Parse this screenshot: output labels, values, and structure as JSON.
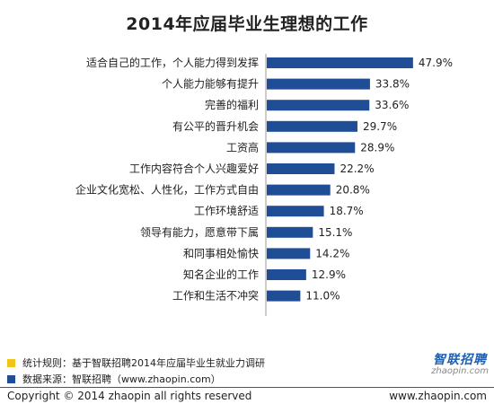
{
  "chart_data": {
    "type": "bar",
    "orientation": "horizontal",
    "title": "2014年应届毕业生理想的工作",
    "categories": [
      "适合自己的工作，个人能力得到发挥",
      "个人能力能够有提升",
      "完善的福利",
      "有公平的晋升机会",
      "工资高",
      "工作内容符合个人兴趣爱好",
      "企业文化宽松、人性化，工作方式自由",
      "工作环境舒适",
      "领导有能力，愿意带下属",
      "和同事相处愉快",
      "知名企业的工作",
      "工作和生活不冲突"
    ],
    "values": [
      47.9,
      33.8,
      33.6,
      29.7,
      28.9,
      22.2,
      20.8,
      18.7,
      15.1,
      14.2,
      12.9,
      11.0
    ],
    "value_labels": [
      "47.9%",
      "33.8%",
      "33.6%",
      "29.7%",
      "28.9%",
      "22.2%",
      "20.8%",
      "18.7%",
      "15.1%",
      "14.2%",
      "12.9%",
      "11.0%"
    ],
    "xlim": [
      0,
      50
    ],
    "grid": false,
    "bar_color": "#1f4e96"
  },
  "footnotes": {
    "rule_text": "统计规则：基于智联招聘2014年应届毕业生就业力调研",
    "rule_color": "#f0c419",
    "source_text": "数据来源：智联招聘（www.zhaopin.com）",
    "source_color": "#1f4e96"
  },
  "logo": {
    "text": "智联招聘",
    "subtext": "zhaopin.com"
  },
  "footer": {
    "copyright": "Copyright  ©  2014 zhaopin all rights reserved",
    "url": "www.zhaopin.com"
  }
}
